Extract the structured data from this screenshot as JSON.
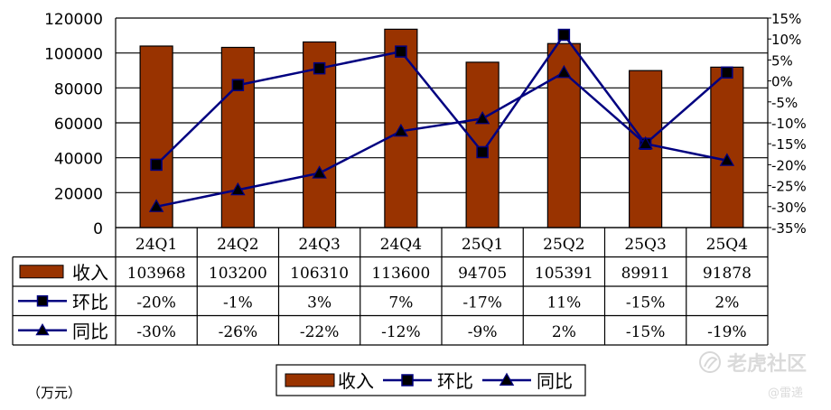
{
  "chart_data": {
    "type": "bar",
    "categories": [
      "24Q1",
      "24Q2",
      "24Q3",
      "24Q4",
      "25Q1",
      "25Q2",
      "25Q3",
      "25Q4"
    ],
    "series": [
      {
        "name": "收入",
        "kind": "bar",
        "axis": "left",
        "color": "#993300",
        "values": [
          103968,
          103200,
          106310,
          113600,
          94705,
          105391,
          89911,
          91878
        ],
        "labels": [
          "103968",
          "103200",
          "106310",
          "113600",
          "94705",
          "105391",
          "89911",
          "91878"
        ]
      },
      {
        "name": "环比",
        "kind": "line",
        "axis": "right",
        "marker": "square",
        "color": "#000080",
        "values": [
          -20,
          -1,
          3,
          7,
          -17,
          11,
          -15,
          2
        ],
        "labels": [
          "-20%",
          "-1%",
          "3%",
          "7%",
          "-17%",
          "11%",
          "-15%",
          "2%"
        ]
      },
      {
        "name": "同比",
        "kind": "line",
        "axis": "right",
        "marker": "triangle",
        "color": "#000080",
        "values": [
          -30,
          -26,
          -22,
          -12,
          -9,
          2,
          -15,
          -19
        ],
        "labels": [
          "-30%",
          "-26%",
          "-22%",
          "-12%",
          "-9%",
          "2%",
          "-15%",
          "-19%"
        ]
      }
    ],
    "left_axis": {
      "min": 0,
      "max": 120000,
      "step": 20000,
      "ticks": [
        "0",
        "20000",
        "40000",
        "60000",
        "80000",
        "100000",
        "120000"
      ]
    },
    "right_axis": {
      "min": -35,
      "max": 15,
      "step": 5,
      "ticks": [
        "-35%",
        "-30%",
        "-25%",
        "-20%",
        "-15%",
        "-10%",
        "-5%",
        "0%",
        "5%",
        "10%",
        "15%"
      ]
    },
    "grid": true,
    "legend_position": "bottom-center",
    "unit_label": "（万元）",
    "data_table": true
  },
  "watermark": {
    "site": "老虎社区",
    "author": "@雷递"
  }
}
